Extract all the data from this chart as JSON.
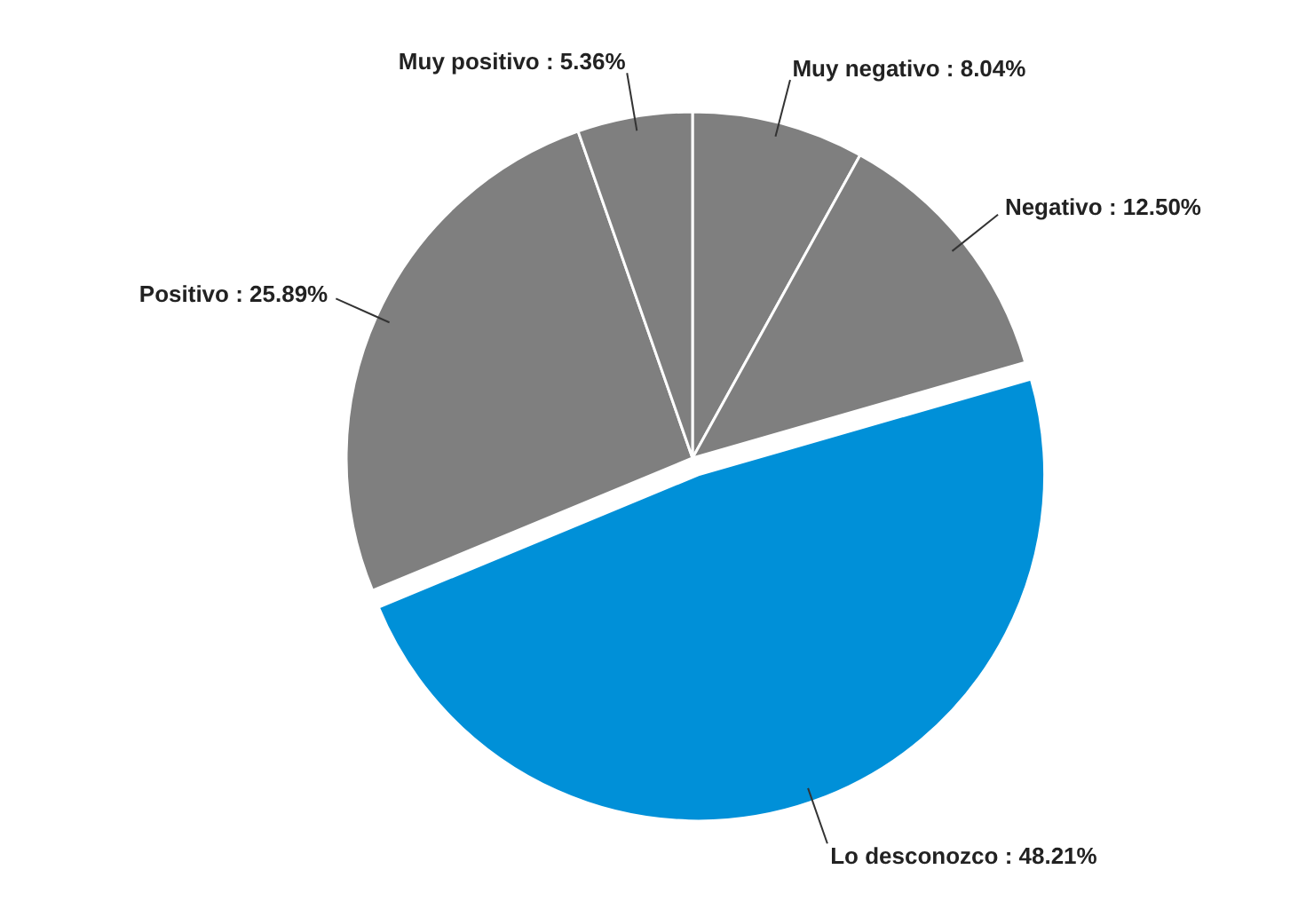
{
  "chart_data": {
    "type": "pie",
    "categories": [
      "Muy negativo",
      "Negativo",
      "Lo desconozco",
      "Positivo",
      "Muy positivo"
    ],
    "values": [
      8.04,
      12.5,
      48.21,
      25.89,
      5.36
    ],
    "value_labels": [
      "8.04%",
      "12.50%",
      "48.21%",
      "25.89%",
      "5.36%"
    ],
    "colors": [
      "#7f7f7f",
      "#7f7f7f",
      "#0090d8",
      "#7f7f7f",
      "#7f7f7f"
    ]
  }
}
